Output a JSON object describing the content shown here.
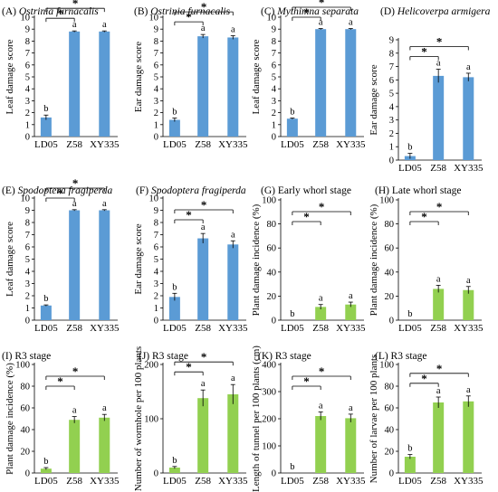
{
  "colors": {
    "blue": "#5b9bd5",
    "green": "#92d050",
    "axis": "#000000"
  },
  "chart_data": [
    {
      "type": "bar",
      "title": "(A) Ostrinia furnacalis",
      "title_prefix": "(A) ",
      "title_italic": "Ostrinia furnacalis",
      "ylabel": "Leaf damage score",
      "categories": [
        "LD05",
        "Z58",
        "XY335"
      ],
      "values": [
        1.6,
        8.8,
        8.8
      ],
      "errors": [
        0.2,
        0.05,
        0.05
      ],
      "letters": [
        "b",
        "a",
        "a"
      ],
      "ylim": [
        0,
        10
      ],
      "yticks": [
        0,
        1,
        2,
        3,
        4,
        5,
        6,
        7,
        8,
        9,
        10
      ],
      "color": "blue",
      "sig": [
        {
          "from": 0,
          "to": 1,
          "label": "*"
        },
        {
          "from": 0,
          "to": 2,
          "label": "*"
        }
      ]
    },
    {
      "type": "bar",
      "title": "(B) Ostrinia furnacalis",
      "title_prefix": "(B) ",
      "title_italic": "Ostrinia furnacalis",
      "ylabel": "Ear damage score",
      "categories": [
        "LD05",
        "Z58",
        "XY335"
      ],
      "values": [
        1.4,
        8.4,
        8.3
      ],
      "errors": [
        0.15,
        0.15,
        0.15
      ],
      "letters": [
        "b",
        "a",
        "a"
      ],
      "ylim": [
        0,
        10
      ],
      "yticks": [
        0,
        1,
        2,
        3,
        4,
        5,
        6,
        7,
        8,
        9,
        10
      ],
      "color": "blue",
      "sig": [
        {
          "from": 0,
          "to": 1,
          "label": "*"
        },
        {
          "from": 0,
          "to": 2,
          "label": "*"
        }
      ]
    },
    {
      "type": "bar",
      "title": "(C) Mythimna separata",
      "title_prefix": "(C) ",
      "title_italic": "Mythimna separata",
      "ylabel": "Leaf damage score",
      "categories": [
        "LD05",
        "Z58",
        "XY335"
      ],
      "values": [
        1.5,
        9.0,
        9.0
      ],
      "errors": [
        0.05,
        0.05,
        0.05
      ],
      "letters": [
        "b",
        "a",
        "a"
      ],
      "ylim": [
        0,
        10
      ],
      "yticks": [
        0,
        1,
        2,
        3,
        4,
        5,
        6,
        7,
        8,
        9,
        10
      ],
      "color": "blue",
      "sig": [
        {
          "from": 0,
          "to": 1,
          "label": "*"
        },
        {
          "from": 0,
          "to": 2,
          "label": "*"
        }
      ]
    },
    {
      "type": "bar",
      "title": "(D) Helicoverpa armigera",
      "title_prefix": "(D) ",
      "title_italic": "Helicoverpa armigera",
      "ylabel": "Ear damage score",
      "categories": [
        "LD05",
        "Z58",
        "XY335"
      ],
      "values": [
        0.3,
        6.3,
        6.2
      ],
      "errors": [
        0.2,
        0.5,
        0.3
      ],
      "letters": [
        "b",
        "a",
        "a"
      ],
      "ylim": [
        0,
        9
      ],
      "yticks": [
        0,
        1,
        2,
        3,
        4,
        5,
        6,
        7,
        8,
        9
      ],
      "color": "blue",
      "sig": [
        {
          "from": 0,
          "to": 1,
          "label": "*"
        },
        {
          "from": 0,
          "to": 2,
          "label": "*"
        }
      ]
    },
    {
      "type": "bar",
      "title": "(E) Spodoptera fragiperda",
      "title_prefix": "(E) ",
      "title_italic": "Spodoptera fragiperda",
      "ylabel": "Leaf damage score",
      "categories": [
        "LD05",
        "Z58",
        "XY335"
      ],
      "values": [
        1.2,
        9.0,
        9.0
      ],
      "errors": [
        0.05,
        0.05,
        0.05
      ],
      "letters": [
        "b",
        "a",
        "a"
      ],
      "ylim": [
        0,
        10
      ],
      "yticks": [
        0,
        1,
        2,
        3,
        4,
        5,
        6,
        7,
        8,
        9,
        10
      ],
      "color": "blue",
      "sig": [
        {
          "from": 0,
          "to": 1,
          "label": "*"
        },
        {
          "from": 0,
          "to": 2,
          "label": "*"
        }
      ]
    },
    {
      "type": "bar",
      "title": "(F) Spodoptera fragiperda",
      "title_prefix": "(F) ",
      "title_italic": "Spodoptera fragiperda",
      "ylabel": "Ear damage score",
      "categories": [
        "LD05",
        "Z58",
        "XY335"
      ],
      "values": [
        1.9,
        6.7,
        6.2
      ],
      "errors": [
        0.3,
        0.4,
        0.3
      ],
      "letters": [
        "b",
        "a",
        "a"
      ],
      "ylim": [
        0,
        10
      ],
      "yticks": [
        0,
        1,
        2,
        3,
        4,
        5,
        6,
        7,
        8,
        9,
        10
      ],
      "color": "blue",
      "sig": [
        {
          "from": 0,
          "to": 1,
          "label": "*"
        },
        {
          "from": 0,
          "to": 2,
          "label": "*"
        }
      ]
    },
    {
      "type": "bar",
      "title": "(G) Early whorl stage",
      "title_prefix": "(G) Early whorl stage",
      "title_italic": "",
      "ylabel": "Plant damage incidence (%)",
      "categories": [
        "LD05",
        "Z58",
        "XY335"
      ],
      "values": [
        0,
        11,
        13
      ],
      "errors": [
        0,
        2,
        2
      ],
      "letters": [
        "b",
        "a",
        "a"
      ],
      "ylim": [
        0,
        100
      ],
      "yticks": [
        0,
        20,
        40,
        60,
        80,
        100
      ],
      "color": "green",
      "sig": [
        {
          "from": 0,
          "to": 1,
          "label": "*"
        },
        {
          "from": 0,
          "to": 2,
          "label": "*"
        }
      ]
    },
    {
      "type": "bar",
      "title": "(H) Late whorl stage",
      "title_prefix": "(H) Late whorl stage",
      "title_italic": "",
      "ylabel": "Plant damage incidence (%)",
      "categories": [
        "LD05",
        "Z58",
        "XY335"
      ],
      "values": [
        0,
        26,
        25
      ],
      "errors": [
        0,
        3,
        3
      ],
      "letters": [
        "b",
        "a",
        "a"
      ],
      "ylim": [
        0,
        100
      ],
      "yticks": [
        0,
        20,
        40,
        60,
        80,
        100
      ],
      "color": "green",
      "sig": [
        {
          "from": 0,
          "to": 1,
          "label": "*"
        },
        {
          "from": 0,
          "to": 2,
          "label": "*"
        }
      ]
    },
    {
      "type": "bar",
      "title": "(I) R3 stage",
      "title_prefix": "(I) R3 stage",
      "title_italic": "",
      "ylabel": "Plant damage incidence (%)",
      "categories": [
        "LD05",
        "Z58",
        "XY335"
      ],
      "values": [
        4,
        49,
        51
      ],
      "errors": [
        1,
        3,
        3
      ],
      "letters": [
        "b",
        "a",
        "a"
      ],
      "ylim": [
        0,
        100
      ],
      "yticks": [
        0,
        20,
        40,
        60,
        80,
        100
      ],
      "color": "green",
      "sig": [
        {
          "from": 0,
          "to": 1,
          "label": "*"
        },
        {
          "from": 0,
          "to": 2,
          "label": "*"
        }
      ]
    },
    {
      "type": "bar",
      "title": "(J) R3 stage",
      "title_prefix": "(J) R3 stage",
      "title_italic": "",
      "ylabel": "Number of wormhole per 100 plants",
      "categories": [
        "LD05",
        "Z58",
        "XY335"
      ],
      "values": [
        10,
        138,
        145
      ],
      "errors": [
        2,
        15,
        18
      ],
      "letters": [
        "b",
        "a",
        "a"
      ],
      "ylim": [
        0,
        200
      ],
      "yticks": [
        0,
        100,
        200
      ],
      "color": "green",
      "sig": [
        {
          "from": 0,
          "to": 1,
          "label": "*"
        },
        {
          "from": 0,
          "to": 2,
          "label": "*"
        }
      ]
    },
    {
      "type": "bar",
      "title": "(K) R3 stage",
      "title_prefix": "(K) R3 stage",
      "title_italic": "",
      "ylabel": "Length of tunnel per 100 plants (cm)",
      "categories": [
        "LD05",
        "Z58",
        "XY335"
      ],
      "values": [
        0,
        210,
        202
      ],
      "errors": [
        0,
        15,
        15
      ],
      "letters": [
        "b",
        "a",
        "a"
      ],
      "ylim": [
        0,
        400
      ],
      "yticks": [
        0,
        100,
        200,
        300,
        400
      ],
      "color": "green",
      "sig": [
        {
          "from": 0,
          "to": 1,
          "label": "*"
        },
        {
          "from": 0,
          "to": 2,
          "label": "*"
        }
      ]
    },
    {
      "type": "bar",
      "title": "(L) R3 stage",
      "title_prefix": "(L) R3 stage",
      "title_italic": "",
      "ylabel": "Number of larvae per 100 plants",
      "categories": [
        "LD05",
        "Z58",
        "XY335"
      ],
      "values": [
        15,
        65,
        66
      ],
      "errors": [
        2,
        5,
        5
      ],
      "letters": [
        "b",
        "a",
        "a"
      ],
      "ylim": [
        0,
        100
      ],
      "yticks": [
        0,
        20,
        40,
        60,
        80,
        100
      ],
      "color": "green",
      "sig": [
        {
          "from": 0,
          "to": 1,
          "label": "*"
        },
        {
          "from": 0,
          "to": 2,
          "label": "*"
        }
      ]
    }
  ]
}
